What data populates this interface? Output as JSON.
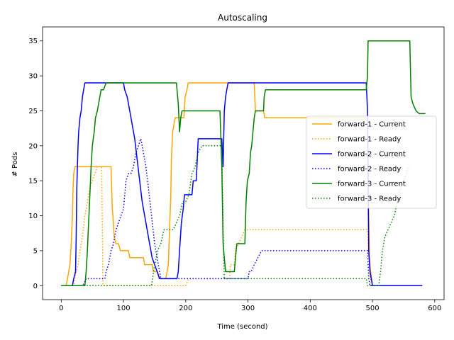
{
  "chart_data": {
    "type": "line",
    "title": "Autoscaling",
    "xlabel": "Time (second)",
    "ylabel": "# Pods",
    "xlim": [
      -30,
      615
    ],
    "ylim": [
      -2,
      37
    ],
    "xticks": [
      0,
      100,
      200,
      300,
      400,
      500,
      600
    ],
    "yticks": [
      0,
      5,
      10,
      15,
      20,
      25,
      30,
      35
    ],
    "grid": false,
    "legend_position": "center-right",
    "series": [
      {
        "name": "forward-1 - Current",
        "color": "#ffa500",
        "style": "solid",
        "points": [
          [
            0,
            0
          ],
          [
            8,
            0
          ],
          [
            10,
            1
          ],
          [
            12,
            2
          ],
          [
            14,
            3
          ],
          [
            16,
            6
          ],
          [
            18,
            10
          ],
          [
            19,
            14
          ],
          [
            20,
            16
          ],
          [
            22,
            17
          ],
          [
            80,
            17
          ],
          [
            82,
            11
          ],
          [
            83,
            10
          ],
          [
            85,
            7
          ],
          [
            88,
            6
          ],
          [
            92,
            6
          ],
          [
            95,
            5
          ],
          [
            108,
            5
          ],
          [
            110,
            4
          ],
          [
            132,
            4
          ],
          [
            134,
            3
          ],
          [
            146,
            3
          ],
          [
            148,
            2
          ],
          [
            155,
            2
          ],
          [
            157,
            1
          ],
          [
            168,
            1
          ],
          [
            172,
            3
          ],
          [
            174,
            8
          ],
          [
            176,
            13
          ],
          [
            177,
            18
          ],
          [
            179,
            22
          ],
          [
            183,
            24
          ],
          [
            197,
            24
          ],
          [
            199,
            27
          ],
          [
            202,
            28
          ],
          [
            204,
            29
          ],
          [
            310,
            29
          ],
          [
            312,
            25
          ],
          [
            325,
            25
          ],
          [
            327,
            24
          ],
          [
            492,
            24
          ],
          [
            493,
            18
          ],
          [
            494,
            10
          ],
          [
            495,
            4
          ],
          [
            497,
            2
          ],
          [
            500,
            0
          ],
          [
            508,
            0
          ]
        ]
      },
      {
        "name": "forward-1 - Ready",
        "color": "#ffa500",
        "style": "dotted",
        "points": [
          [
            0,
            0
          ],
          [
            20,
            0
          ],
          [
            24,
            2
          ],
          [
            27,
            3
          ],
          [
            30,
            5
          ],
          [
            34,
            7
          ],
          [
            38,
            10
          ],
          [
            42,
            12
          ],
          [
            46,
            14
          ],
          [
            50,
            15
          ],
          [
            54,
            16
          ],
          [
            58,
            17
          ],
          [
            60,
            17
          ],
          [
            65,
            17
          ],
          [
            67,
            0
          ],
          [
            200,
            0
          ],
          [
            205,
            1
          ],
          [
            250,
            1
          ],
          [
            252,
            1
          ],
          [
            255,
            1
          ],
          [
            270,
            1
          ],
          [
            272,
            3
          ],
          [
            278,
            3
          ],
          [
            280,
            5
          ],
          [
            285,
            6
          ],
          [
            290,
            7
          ],
          [
            295,
            8
          ],
          [
            305,
            8
          ],
          [
            490,
            8
          ],
          [
            492,
            8
          ],
          [
            495,
            3
          ],
          [
            497,
            0
          ],
          [
            508,
            0
          ]
        ]
      },
      {
        "name": "forward-2 - Current",
        "color": "#0000ff",
        "style": "solid",
        "points": [
          [
            0,
            0
          ],
          [
            16,
            0
          ],
          [
            18,
            0
          ],
          [
            20,
            1
          ],
          [
            23,
            2
          ],
          [
            24,
            7
          ],
          [
            25,
            14
          ],
          [
            26,
            17
          ],
          [
            27,
            20
          ],
          [
            28,
            22
          ],
          [
            30,
            24
          ],
          [
            32,
            25
          ],
          [
            34,
            27
          ],
          [
            36,
            28
          ],
          [
            38,
            29
          ],
          [
            100,
            29
          ],
          [
            102,
            28
          ],
          [
            106,
            27
          ],
          [
            110,
            25
          ],
          [
            114,
            23
          ],
          [
            118,
            21
          ],
          [
            122,
            18
          ],
          [
            126,
            15
          ],
          [
            130,
            12
          ],
          [
            134,
            10
          ],
          [
            138,
            8
          ],
          [
            142,
            6
          ],
          [
            146,
            4
          ],
          [
            150,
            3
          ],
          [
            154,
            2
          ],
          [
            158,
            1
          ],
          [
            180,
            1
          ],
          [
            186,
            1
          ],
          [
            188,
            2
          ],
          [
            190,
            5
          ],
          [
            193,
            9
          ],
          [
            196,
            11
          ],
          [
            198,
            13
          ],
          [
            200,
            13
          ],
          [
            210,
            13
          ],
          [
            212,
            15
          ],
          [
            217,
            15
          ],
          [
            220,
            21
          ],
          [
            258,
            21
          ],
          [
            260,
            17
          ],
          [
            262,
            25
          ],
          [
            264,
            27
          ],
          [
            266,
            28
          ],
          [
            268,
            29
          ],
          [
            300,
            29
          ],
          [
            490,
            29
          ],
          [
            492,
            25
          ],
          [
            493,
            15
          ],
          [
            494,
            5
          ],
          [
            496,
            2
          ],
          [
            500,
            0
          ],
          [
            508,
            0
          ],
          [
            580,
            0
          ]
        ]
      },
      {
        "name": "forward-2 - Ready",
        "color": "#0000ff",
        "style": "dotted",
        "points": [
          [
            0,
            0
          ],
          [
            35,
            0
          ],
          [
            40,
            1
          ],
          [
            70,
            1
          ],
          [
            72,
            2
          ],
          [
            76,
            3
          ],
          [
            80,
            5
          ],
          [
            84,
            6
          ],
          [
            88,
            8
          ],
          [
            92,
            9
          ],
          [
            96,
            10
          ],
          [
            100,
            11
          ],
          [
            104,
            15
          ],
          [
            108,
            16
          ],
          [
            112,
            16
          ],
          [
            116,
            17
          ],
          [
            120,
            19
          ],
          [
            124,
            20
          ],
          [
            128,
            21
          ],
          [
            132,
            19
          ],
          [
            136,
            17
          ],
          [
            140,
            14
          ],
          [
            145,
            10
          ],
          [
            150,
            6
          ],
          [
            156,
            3
          ],
          [
            160,
            1
          ],
          [
            300,
            1
          ],
          [
            302,
            2
          ],
          [
            305,
            2
          ],
          [
            310,
            3
          ],
          [
            316,
            4
          ],
          [
            322,
            5
          ],
          [
            330,
            5
          ],
          [
            480,
            5
          ],
          [
            490,
            5
          ],
          [
            492,
            5
          ],
          [
            494,
            1
          ],
          [
            496,
            0
          ],
          [
            508,
            0
          ]
        ]
      },
      {
        "name": "forward-3 - Current",
        "color": "#008000",
        "style": "solid",
        "points": [
          [
            0,
            0
          ],
          [
            38,
            0
          ],
          [
            40,
            2
          ],
          [
            42,
            5
          ],
          [
            44,
            9
          ],
          [
            46,
            13
          ],
          [
            48,
            17
          ],
          [
            50,
            20
          ],
          [
            53,
            22
          ],
          [
            55,
            24
          ],
          [
            58,
            25
          ],
          [
            60,
            26
          ],
          [
            62,
            27
          ],
          [
            64,
            28
          ],
          [
            68,
            28
          ],
          [
            72,
            29
          ],
          [
            185,
            29
          ],
          [
            188,
            26
          ],
          [
            190,
            22
          ],
          [
            192,
            24
          ],
          [
            194,
            25
          ],
          [
            255,
            25
          ],
          [
            258,
            17
          ],
          [
            260,
            6
          ],
          [
            262,
            4
          ],
          [
            264,
            2
          ],
          [
            278,
            2
          ],
          [
            280,
            4
          ],
          [
            282,
            6
          ],
          [
            295,
            6
          ],
          [
            297,
            12
          ],
          [
            299,
            15
          ],
          [
            302,
            16
          ],
          [
            304,
            19
          ],
          [
            306,
            20
          ],
          [
            308,
            22
          ],
          [
            310,
            24
          ],
          [
            312,
            25
          ],
          [
            325,
            25
          ],
          [
            326,
            27
          ],
          [
            328,
            28
          ],
          [
            490,
            28
          ],
          [
            492,
            30
          ],
          [
            493,
            35
          ],
          [
            560,
            35
          ],
          [
            562,
            27
          ],
          [
            565,
            26
          ],
          [
            570,
            25
          ],
          [
            575,
            24.6
          ],
          [
            585,
            24.6
          ]
        ]
      },
      {
        "name": "forward-3 - Ready",
        "color": "#008000",
        "style": "dotted",
        "points": [
          [
            0,
            0
          ],
          [
            145,
            0
          ],
          [
            150,
            3
          ],
          [
            155,
            5
          ],
          [
            160,
            6
          ],
          [
            165,
            8
          ],
          [
            180,
            8
          ],
          [
            185,
            9
          ],
          [
            190,
            10
          ],
          [
            195,
            12
          ],
          [
            200,
            12
          ],
          [
            205,
            13
          ],
          [
            210,
            16
          ],
          [
            215,
            17
          ],
          [
            220,
            19
          ],
          [
            226,
            20
          ],
          [
            258,
            20
          ],
          [
            260,
            8
          ],
          [
            262,
            1
          ],
          [
            300,
            1
          ],
          [
            488,
            1
          ],
          [
            490,
            1
          ],
          [
            492,
            0
          ],
          [
            510,
            0
          ],
          [
            513,
            2
          ],
          [
            516,
            5
          ],
          [
            520,
            7
          ],
          [
            525,
            8
          ],
          [
            530,
            9
          ],
          [
            535,
            10
          ],
          [
            540,
            12
          ],
          [
            545,
            14
          ],
          [
            550,
            15
          ],
          [
            555,
            16
          ],
          [
            558,
            17
          ],
          [
            560,
            17
          ]
        ]
      }
    ]
  }
}
